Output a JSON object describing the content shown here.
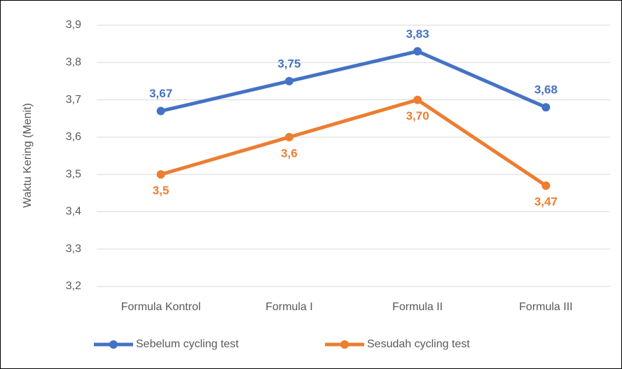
{
  "chart_data": {
    "type": "line",
    "y_label": "Waktu Kering (Menit)",
    "categories": [
      "Formula Kontrol",
      "Formula I",
      "Formula II",
      "Formula III"
    ],
    "series": [
      {
        "name": "Sebelum cycling test",
        "color": "#4472c4",
        "values": [
          3.67,
          3.75,
          3.83,
          3.68
        ],
        "value_labels": [
          "3,67",
          "3,75",
          "3,83",
          "3,68"
        ]
      },
      {
        "name": "Sesudah cycling test",
        "color": "#ed7d31",
        "values": [
          3.5,
          3.6,
          3.7,
          3.47
        ],
        "value_labels": [
          "3,5",
          "3,6",
          "3,70",
          "3,47"
        ]
      }
    ],
    "ylim": [
      3.2,
      3.9
    ],
    "yticks": [
      {
        "value": 3.2,
        "label": "3,2"
      },
      {
        "value": 3.3,
        "label": "3,3"
      },
      {
        "value": 3.4,
        "label": "3,4"
      },
      {
        "value": 3.5,
        "label": "3,5"
      },
      {
        "value": 3.6,
        "label": "3,6"
      },
      {
        "value": 3.7,
        "label": "3,7"
      },
      {
        "value": 3.8,
        "label": "3,8"
      },
      {
        "value": 3.9,
        "label": "3,9"
      }
    ],
    "grid": true,
    "legend": "bottom"
  }
}
